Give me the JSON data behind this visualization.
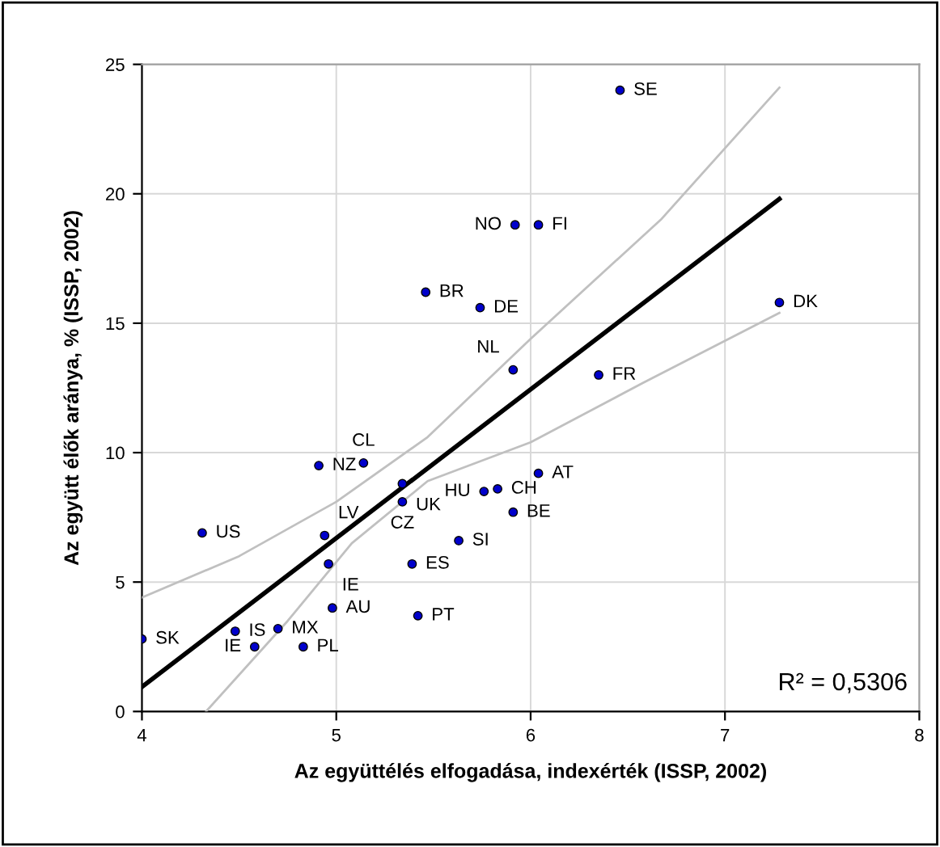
{
  "chart_data": {
    "type": "scatter",
    "xlabel": "Az együttélés elfogadása, indexérték (ISSP, 2002)",
    "ylabel": "Az együtt élők aránya, % (ISSP, 2002)",
    "xlim": [
      4,
      8
    ],
    "xticks": [
      4,
      5,
      6,
      7,
      8
    ],
    "ylim": [
      0,
      25
    ],
    "yticks": [
      0,
      5,
      10,
      15,
      20,
      25
    ],
    "grid": true,
    "legend": false,
    "series": [
      {
        "marker": "circle",
        "color": "#0000cc",
        "x": [
          4.0,
          4.48,
          4.58,
          4.7,
          4.83,
          4.98,
          4.96,
          4.94,
          4.31,
          4.91,
          5.14,
          5.34,
          5.34,
          5.39,
          5.42,
          5.63,
          5.76,
          5.83,
          5.91,
          6.04,
          5.91,
          6.35,
          5.46,
          5.74,
          5.92,
          6.04,
          6.46,
          7.28
        ],
        "values": [
          2.8,
          3.1,
          2.5,
          3.2,
          2.5,
          4.0,
          5.7,
          6.8,
          6.9,
          9.5,
          9.6,
          8.8,
          8.1,
          5.7,
          3.7,
          6.6,
          8.5,
          8.6,
          7.7,
          9.2,
          13.2,
          13.0,
          16.2,
          15.6,
          18.8,
          18.8,
          24.0,
          15.8
        ],
        "value_labels": [
          "SK",
          "IS",
          "IE",
          "MX",
          "PL",
          "AU",
          "IE",
          "LV",
          "US",
          "NZ",
          "CL",
          "UK",
          "CZ",
          "ES",
          "PT",
          "SI",
          "HU",
          "CH",
          "BE",
          "AT",
          "NL",
          "FR",
          "BR",
          "DE",
          "NO",
          "FI",
          "SE",
          "DK"
        ]
      },
      {
        "type": "line",
        "color": "#000000",
        "line_style": "solid",
        "x": [
          4,
          7.28
        ],
        "values": [
          0.95,
          19.8
        ]
      },
      {
        "type": "line",
        "color": "#c0c0c0",
        "line_style": "solid",
        "x": [
          4,
          4.5,
          5,
          5.47,
          6,
          6.67,
          7.28
        ],
        "values": [
          4.4,
          6.0,
          8.1,
          10.6,
          14.4,
          19.0,
          24.1
        ]
      },
      {
        "type": "line",
        "color": "#c0c0c0",
        "line_style": "solid",
        "x": [
          4.33,
          4.75,
          5.08,
          5.47,
          6,
          6.58,
          7.28
        ],
        "values": [
          0,
          3.5,
          6.5,
          8.9,
          10.4,
          12.7,
          15.4
        ]
      }
    ],
    "annotations": [
      "R² = 0,5306"
    ]
  }
}
